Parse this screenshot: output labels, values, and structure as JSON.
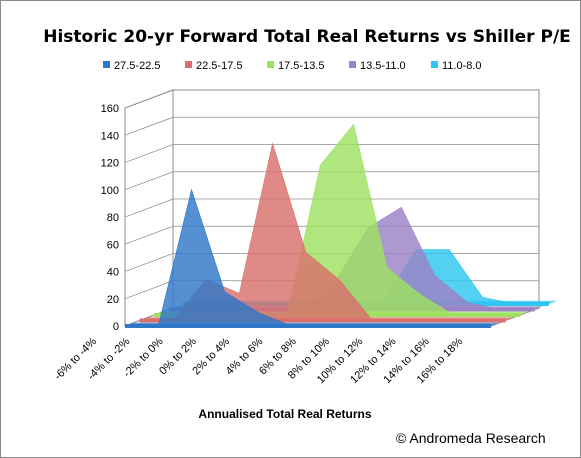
{
  "chart_data": {
    "type": "area",
    "subtype": "3d-area",
    "title": "Historic 20-yr Forward Total Real Returns vs Shiller P/E",
    "xlabel": "Annualised Total Real Returns",
    "ylabel": "",
    "categories": [
      "-6% to -4%",
      "-4% to -2%",
      "-2% to 0%",
      "0% to 2%",
      "2% to 4%",
      "4% to 6%",
      "6% to 8%",
      "8% to 10%",
      "10% to 12%",
      "12% to 14%",
      "14% to 16%",
      "16% to 18%"
    ],
    "ylim": [
      0,
      160
    ],
    "yticks": [
      0,
      20,
      40,
      60,
      80,
      100,
      120,
      140,
      160
    ],
    "grid": true,
    "legend_position": "top",
    "series": [
      {
        "name": "27.5-22.5",
        "color": "#2E78C8",
        "values": [
          0,
          0,
          100,
          25,
          10,
          0,
          0,
          0,
          0,
          0,
          0,
          0
        ]
      },
      {
        "name": "22.5-17.5",
        "color": "#D9706C",
        "values": [
          0,
          0,
          30,
          20,
          130,
          50,
          30,
          0,
          0,
          0,
          0,
          0
        ]
      },
      {
        "name": "17.5-13.5",
        "color": "#9EE060",
        "values": [
          0,
          0,
          0,
          0,
          0,
          110,
          140,
          35,
          15,
          0,
          0,
          0
        ]
      },
      {
        "name": "13.5-11.0",
        "color": "#9B82C4",
        "values": [
          0,
          0,
          0,
          0,
          0,
          20,
          60,
          75,
          25,
          5,
          0,
          0
        ]
      },
      {
        "name": "11.0-8.0",
        "color": "#2EC6F0",
        "values": [
          0,
          0,
          0,
          0,
          0,
          0,
          0,
          40,
          40,
          5,
          0,
          0
        ]
      }
    ]
  },
  "footer": {
    "credit": "© Andromeda  Research"
  }
}
